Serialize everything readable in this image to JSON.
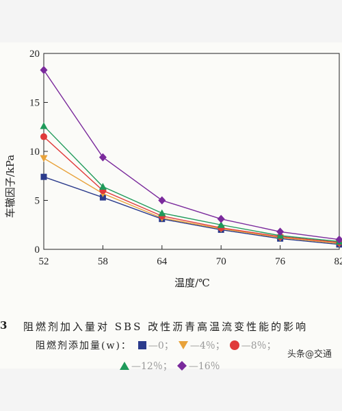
{
  "chart_data": {
    "type": "line",
    "title": "",
    "xlabel": "温度/℃",
    "ylabel": "车辙因子/kPa",
    "x": [
      52,
      58,
      64,
      70,
      76,
      82
    ],
    "xlim": [
      52,
      82
    ],
    "ylim": [
      0,
      20
    ],
    "xticks": [
      "52",
      "58",
      "64",
      "70",
      "76",
      "82"
    ],
    "yticks": [
      "0",
      "5",
      "10",
      "15",
      "20"
    ],
    "grid": false,
    "legend_position": "bottom",
    "legend_title": "阻燃剂添加量(w)：",
    "series": [
      {
        "name": "0",
        "values": [
          7.4,
          5.3,
          3.1,
          2.0,
          1.1,
          0.5
        ],
        "color": "#2b3b8c",
        "marker": "square"
      },
      {
        "name": "4%",
        "values": [
          9.3,
          5.7,
          3.2,
          2.1,
          1.2,
          0.6
        ],
        "color": "#e8a23a",
        "marker": "triangle-down"
      },
      {
        "name": "8%",
        "values": [
          11.5,
          6.0,
          3.4,
          2.2,
          1.3,
          0.7
        ],
        "color": "#e03a3a",
        "marker": "circle"
      },
      {
        "name": "12%",
        "values": [
          12.6,
          6.4,
          3.7,
          2.5,
          1.4,
          0.8
        ],
        "color": "#1f9a5a",
        "marker": "triangle-up"
      },
      {
        "name": "16%",
        "values": [
          18.3,
          9.4,
          5.0,
          3.1,
          1.8,
          1.0
        ],
        "color": "#7a2a9c",
        "marker": "diamond"
      }
    ]
  },
  "caption": {
    "number": "3",
    "text": "阻燃剂加入量对 SBS 改性沥青高温流变性能的影响"
  },
  "legend_labels": [
    "—0；",
    "—4％；",
    "—8％；",
    "—12％；",
    "—16％"
  ],
  "watermark": "头条@交通"
}
